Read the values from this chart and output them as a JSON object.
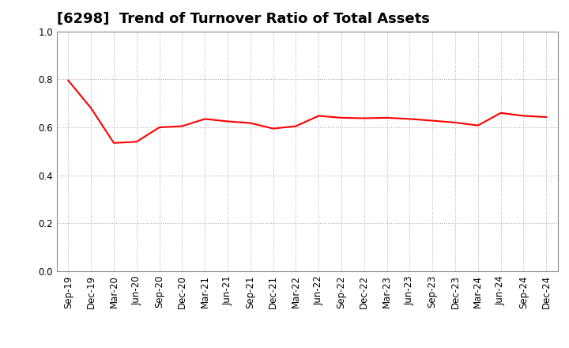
{
  "title": "[6298]  Trend of Turnover Ratio of Total Assets",
  "x_labels": [
    "Sep-19",
    "Dec-19",
    "Mar-20",
    "Jun-20",
    "Sep-20",
    "Dec-20",
    "Mar-21",
    "Jun-21",
    "Sep-21",
    "Dec-21",
    "Mar-22",
    "Jun-22",
    "Sep-22",
    "Dec-22",
    "Mar-23",
    "Jun-23",
    "Sep-23",
    "Dec-23",
    "Mar-24",
    "Jun-24",
    "Sep-24",
    "Dec-24"
  ],
  "y_values": [
    0.795,
    0.68,
    0.535,
    0.54,
    0.6,
    0.605,
    0.635,
    0.625,
    0.618,
    0.595,
    0.605,
    0.648,
    0.64,
    0.638,
    0.64,
    0.635,
    0.628,
    0.62,
    0.608,
    0.66,
    0.648,
    0.643
  ],
  "line_color": "#ff0000",
  "line_width": 1.5,
  "ylim": [
    0.0,
    1.0
  ],
  "yticks": [
    0.0,
    0.2,
    0.4,
    0.6,
    0.8,
    1.0
  ],
  "background_color": "#ffffff",
  "grid_color": "#aaaaaa",
  "title_fontsize": 13,
  "tick_fontsize": 8.5
}
